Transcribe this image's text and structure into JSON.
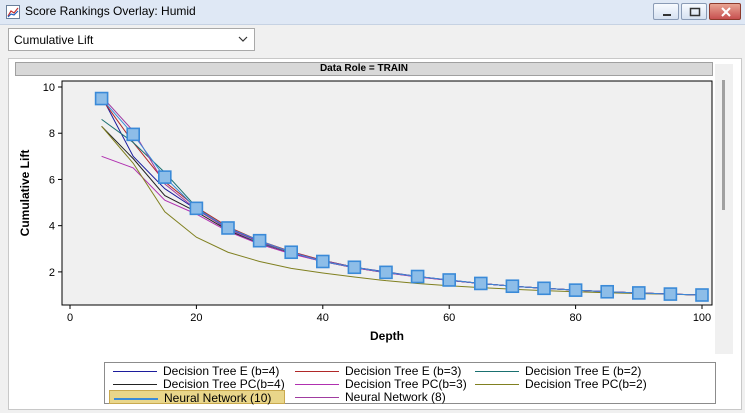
{
  "window": {
    "title": "Score Rankings Overlay: Humid",
    "controls": [
      "minimize-icon",
      "maximize-icon",
      "close-icon"
    ]
  },
  "selector": {
    "selected": "Cumulative Lift"
  },
  "panel_header": "Data Role = TRAIN",
  "chart_data": {
    "type": "line",
    "xlabel": "Depth",
    "ylabel": "Cumulative Lift",
    "xlim": [
      0,
      100
    ],
    "ylim": [
      1,
      10
    ],
    "xticks": [
      "0",
      "20",
      "40",
      "60",
      "80",
      "100"
    ],
    "yticks": [
      "2",
      "4",
      "6",
      "8",
      "10"
    ],
    "grid": false,
    "legend_position": "bottom",
    "x": [
      5,
      10,
      15,
      20,
      25,
      30,
      35,
      40,
      45,
      50,
      55,
      60,
      65,
      70,
      75,
      80,
      85,
      90,
      95,
      100
    ],
    "series": [
      {
        "name": "Decision Tree E (b=4)",
        "color": "#1c1c9c",
        "marker": false,
        "values": [
          9.6,
          7.0,
          5.6,
          4.7,
          3.9,
          3.3,
          2.85,
          2.5,
          2.2,
          2.0,
          1.8,
          1.65,
          1.5,
          1.38,
          1.29,
          1.21,
          1.14,
          1.09,
          1.04,
          1.0
        ]
      },
      {
        "name": "Decision Tree E (b=3)",
        "color": "#b02828",
        "marker": false,
        "values": [
          9.5,
          7.6,
          5.9,
          4.8,
          3.95,
          3.35,
          2.88,
          2.5,
          2.2,
          1.98,
          1.8,
          1.64,
          1.5,
          1.38,
          1.29,
          1.21,
          1.14,
          1.09,
          1.04,
          1.0
        ]
      },
      {
        "name": "Decision Tree E (b=2)",
        "color": "#1a7070",
        "marker": false,
        "values": [
          8.6,
          7.6,
          6.3,
          4.8,
          3.8,
          3.25,
          2.85,
          2.48,
          2.2,
          1.98,
          1.8,
          1.64,
          1.5,
          1.38,
          1.29,
          1.21,
          1.14,
          1.09,
          1.04,
          1.0
        ]
      },
      {
        "name": "Decision Tree PC(b=4)",
        "color": "#222222",
        "marker": false,
        "values": [
          8.3,
          6.9,
          5.3,
          4.6,
          3.8,
          3.2,
          2.8,
          2.45,
          2.18,
          1.96,
          1.79,
          1.63,
          1.5,
          1.38,
          1.29,
          1.21,
          1.14,
          1.09,
          1.04,
          1.0
        ]
      },
      {
        "name": "Decision Tree PC(b=3)",
        "color": "#b030b0",
        "marker": false,
        "values": [
          7.0,
          6.5,
          5.1,
          4.5,
          3.75,
          3.2,
          2.78,
          2.45,
          2.18,
          1.96,
          1.78,
          1.63,
          1.5,
          1.38,
          1.29,
          1.21,
          1.14,
          1.09,
          1.04,
          1.0
        ]
      },
      {
        "name": "Decision Tree PC(b=2)",
        "color": "#808020",
        "marker": false,
        "values": [
          8.3,
          6.7,
          4.6,
          3.5,
          2.85,
          2.45,
          2.15,
          1.95,
          1.78,
          1.62,
          1.5,
          1.4,
          1.32,
          1.25,
          1.19,
          1.14,
          1.1,
          1.06,
          1.03,
          1.0
        ]
      },
      {
        "name": "Neural Network (10)",
        "color": "#3a8ad8",
        "marker": true,
        "values": [
          9.5,
          7.95,
          6.1,
          4.75,
          3.9,
          3.35,
          2.85,
          2.45,
          2.2,
          1.98,
          1.8,
          1.65,
          1.5,
          1.38,
          1.29,
          1.21,
          1.14,
          1.09,
          1.04,
          1.0
        ]
      },
      {
        "name": "Neural Network (8)",
        "color": "#a03ca0",
        "marker": false,
        "values": [
          9.6,
          8.1,
          5.8,
          4.7,
          3.85,
          3.3,
          2.85,
          2.48,
          2.2,
          1.98,
          1.8,
          1.64,
          1.5,
          1.38,
          1.29,
          1.21,
          1.14,
          1.09,
          1.04,
          1.0
        ]
      }
    ]
  },
  "legend": {
    "highlighted": "Neural Network (10)"
  }
}
